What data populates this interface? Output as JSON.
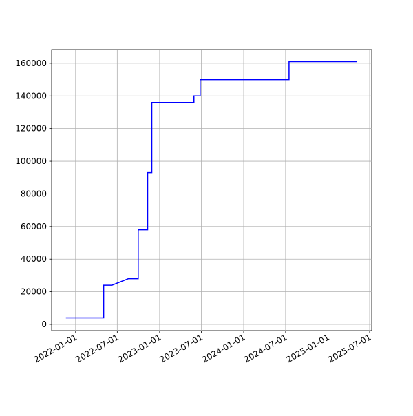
{
  "chart_data": {
    "type": "line",
    "x": [
      "2021-11-20",
      "2022-05-03",
      "2022-05-03",
      "2022-06-08",
      "2022-08-18",
      "2022-09-30",
      "2022-09-30",
      "2022-11-10",
      "2022-11-10",
      "2022-11-28",
      "2022-11-28",
      "2023-05-30",
      "2023-05-30",
      "2023-06-26",
      "2023-06-26",
      "2024-07-16",
      "2024-07-16",
      "2025-05-08"
    ],
    "series": [
      {
        "color": "#0000ff",
        "values": [
          4000,
          4000,
          24000,
          24000,
          28000,
          28000,
          58000,
          58000,
          93000,
          93000,
          136000,
          136000,
          140000,
          140000,
          150000,
          150000,
          161000,
          161000
        ]
      }
    ],
    "xlim": [
      "2021-09-19",
      "2025-07-10"
    ],
    "xticks": [
      "2022-01-01",
      "2022-07-01",
      "2023-01-01",
      "2023-07-01",
      "2024-01-01",
      "2024-07-01",
      "2025-01-01",
      "2025-07-01"
    ],
    "ylim": [
      -3800,
      168400
    ],
    "yticks": [
      0,
      20000,
      40000,
      60000,
      80000,
      100000,
      120000,
      140000,
      160000
    ],
    "grid": true
  }
}
